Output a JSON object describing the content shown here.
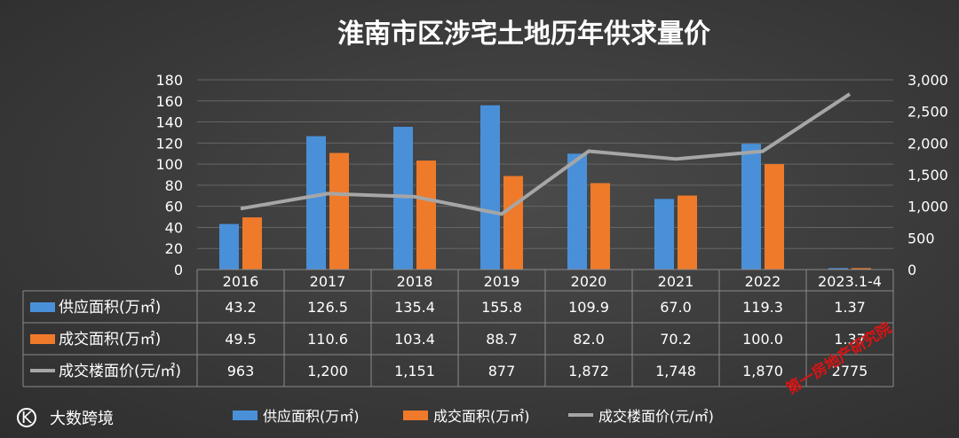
{
  "brand": {
    "logo_text": "K",
    "name": "大数跨境"
  },
  "stamp_text": "第一房地产研究院",
  "colors": {
    "supply": "#4a90d9",
    "deal": "#ee7a2a",
    "price": "#a6a6a6",
    "grid": "#666666",
    "table_line": "#8a8a8a"
  },
  "chart_data": {
    "type": "bar",
    "title": "淮南市区涉宅土地历年供求量价",
    "categories": [
      "2016",
      "2017",
      "2018",
      "2019",
      "2020",
      "2021",
      "2022",
      "2023.1-4"
    ],
    "y_left": {
      "range": [
        0,
        180
      ],
      "ticks": [
        "0",
        "20",
        "40",
        "60",
        "80",
        "100",
        "120",
        "140",
        "160",
        "180"
      ]
    },
    "y_right": {
      "range": [
        0,
        3000
      ],
      "ticks": [
        "0",
        "500",
        "1,000",
        "1,500",
        "2,000",
        "2,500",
        "3,000"
      ]
    },
    "series": [
      {
        "name": "供应面积(万㎡)",
        "type": "bar",
        "axis": "left",
        "values": [
          43.2,
          126.5,
          135.4,
          155.8,
          109.9,
          67.0,
          119.3,
          1.37
        ],
        "labels": [
          "43.2",
          "126.5",
          "135.4",
          "155.8",
          "109.9",
          "67.0",
          "119.3",
          "1.37"
        ]
      },
      {
        "name": "成交面积(万㎡)",
        "type": "bar",
        "axis": "left",
        "values": [
          49.5,
          110.6,
          103.4,
          88.7,
          82.0,
          70.2,
          100.0,
          1.37
        ],
        "labels": [
          "49.5",
          "110.6",
          "103.4",
          "88.7",
          "82.0",
          "70.2",
          "100.0",
          "1.37"
        ]
      },
      {
        "name": "成交楼面价(元/㎡)",
        "type": "line",
        "axis": "right",
        "values": [
          963,
          1200,
          1151,
          877,
          1872,
          1748,
          1870,
          2775
        ],
        "labels": [
          "963",
          "1,200",
          "1,151",
          "877",
          "1,872",
          "1,748",
          "1,870",
          "2775"
        ]
      }
    ],
    "grid": true,
    "legend": "bottom"
  }
}
